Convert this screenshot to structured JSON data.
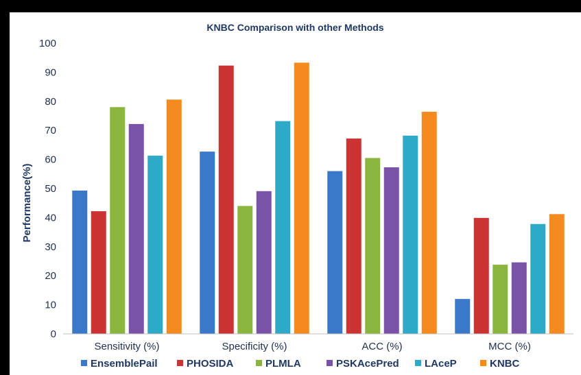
{
  "chart_data": {
    "type": "bar",
    "title": "KNBC Comparison  with other Methods",
    "xlabel": "",
    "ylabel": "Performance(%)",
    "ylim": [
      0,
      100
    ],
    "yticks": [
      0,
      10,
      20,
      30,
      40,
      50,
      60,
      70,
      80,
      90,
      100
    ],
    "categories": [
      "Sensitivity (%)",
      "Specificity (%)",
      "ACC (%)",
      "MCC (%)"
    ],
    "legend_position": "bottom",
    "grid": false,
    "series": [
      {
        "name": "EnsemblePail",
        "color": "#3a78c9",
        "values": [
          49.3,
          62.7,
          56,
          12
        ]
      },
      {
        "name": "PHOSIDA",
        "color": "#cc3333",
        "values": [
          42.2,
          92.3,
          67.2,
          39.9
        ]
      },
      {
        "name": "PLMLA",
        "color": "#8ab53e",
        "values": [
          78,
          44,
          60.5,
          23.8
        ]
      },
      {
        "name": "PSKAcePred",
        "color": "#7a52a8",
        "values": [
          72.2,
          49.1,
          57.3,
          24.6
        ]
      },
      {
        "name": "LAceP",
        "color": "#2eaac8",
        "values": [
          61.3,
          73.2,
          68.2,
          37.8
        ]
      },
      {
        "name": "KNBC",
        "color": "#f58a1f",
        "values": [
          80.6,
          93.3,
          76.4,
          41.2
        ]
      }
    ]
  }
}
